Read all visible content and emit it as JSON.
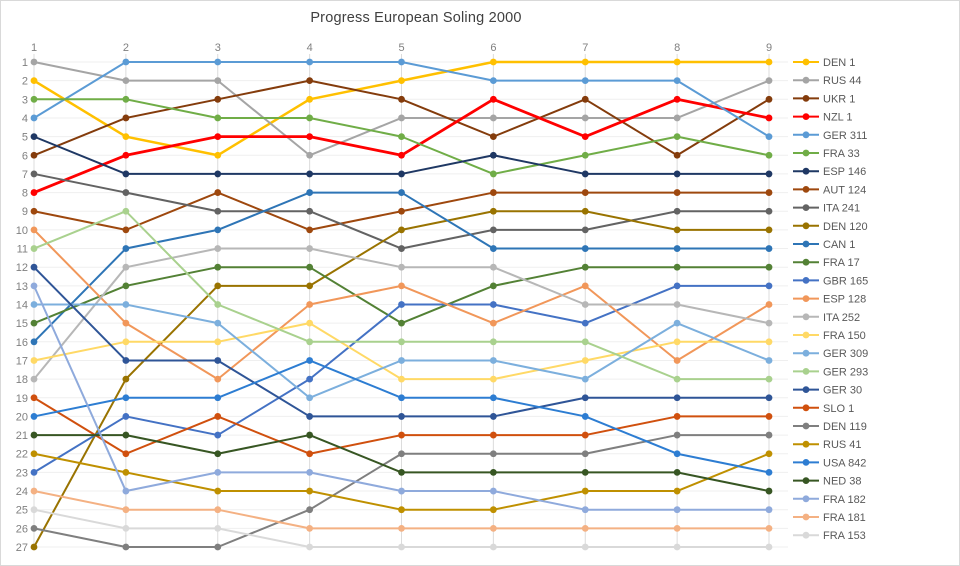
{
  "chart_data": {
    "type": "line",
    "title": "Progress European Soling 2000",
    "xlabel": "",
    "ylabel": "",
    "x_ticks": [
      1,
      2,
      3,
      4,
      5,
      6,
      7,
      8,
      9
    ],
    "y_ticks": [
      1,
      2,
      3,
      4,
      5,
      6,
      7,
      8,
      9,
      10,
      11,
      12,
      13,
      14,
      15,
      16,
      17,
      18,
      19,
      20,
      21,
      22,
      23,
      24,
      25,
      26,
      27
    ],
    "y_axis_inverted": true,
    "grid": true,
    "legend_position": "right",
    "axis_text_color": "#808080",
    "title_color": "#404040",
    "series": [
      {
        "name": "DEN 1",
        "color": "#FFC000",
        "ranks": [
          2,
          5,
          6,
          3,
          2,
          1,
          1,
          1,
          1
        ]
      },
      {
        "name": "RUS 44",
        "color": "#A5A5A5",
        "ranks": [
          1,
          2,
          2,
          6,
          4,
          4,
          4,
          4,
          2
        ]
      },
      {
        "name": "UKR 1",
        "color": "#843C0C",
        "ranks": [
          6,
          4,
          3,
          2,
          3,
          5,
          3,
          6,
          3
        ]
      },
      {
        "name": "NZL 1",
        "color": "#FF0000",
        "ranks": [
          8,
          6,
          5,
          5,
          6,
          3,
          5,
          3,
          4
        ]
      },
      {
        "name": "GER 311",
        "color": "#5B9BD5",
        "ranks": [
          4,
          1,
          1,
          1,
          1,
          2,
          2,
          2,
          5
        ]
      },
      {
        "name": "FRA 33",
        "color": "#70AD47",
        "ranks": [
          3,
          3,
          4,
          4,
          5,
          7,
          6,
          5,
          6
        ]
      },
      {
        "name": "ESP 146",
        "color": "#1F3864",
        "ranks": [
          5,
          7,
          7,
          7,
          7,
          6,
          7,
          7,
          7
        ]
      },
      {
        "name": "AUT 124",
        "color": "#9E480E",
        "ranks": [
          9,
          10,
          8,
          10,
          9,
          8,
          8,
          8,
          8
        ]
      },
      {
        "name": "ITA 241",
        "color": "#636363",
        "ranks": [
          7,
          8,
          9,
          9,
          11,
          10,
          10,
          9,
          9
        ]
      },
      {
        "name": "DEN 120",
        "color": "#997300",
        "ranks": [
          27,
          18,
          13,
          13,
          10,
          9,
          9,
          10,
          10
        ]
      },
      {
        "name": "CAN 1",
        "color": "#2E75B6",
        "ranks": [
          16,
          11,
          10,
          8,
          8,
          11,
          11,
          11,
          11
        ]
      },
      {
        "name": "FRA 17",
        "color": "#538135",
        "ranks": [
          15,
          13,
          12,
          12,
          15,
          13,
          12,
          12,
          12
        ]
      },
      {
        "name": "GBR 165",
        "color": "#4472C4",
        "ranks": [
          23,
          20,
          21,
          18,
          14,
          14,
          15,
          13,
          13
        ]
      },
      {
        "name": "ESP 128",
        "color": "#F1975A",
        "ranks": [
          10,
          15,
          18,
          14,
          13,
          15,
          13,
          17,
          14
        ]
      },
      {
        "name": "ITA 252",
        "color": "#B7B7B7",
        "ranks": [
          18,
          12,
          11,
          11,
          12,
          12,
          14,
          14,
          15
        ]
      },
      {
        "name": "FRA 150",
        "color": "#FFD966",
        "ranks": [
          17,
          16,
          16,
          15,
          18,
          18,
          17,
          16,
          16
        ]
      },
      {
        "name": "GER 309",
        "color": "#7CAFDD",
        "ranks": [
          14,
          14,
          15,
          19,
          17,
          17,
          18,
          15,
          17
        ]
      },
      {
        "name": "GER 293",
        "color": "#A9D18E",
        "ranks": [
          11,
          9,
          14,
          16,
          16,
          16,
          16,
          18,
          18
        ]
      },
      {
        "name": "GER 30",
        "color": "#2F5597",
        "ranks": [
          12,
          17,
          17,
          20,
          20,
          20,
          19,
          19,
          19
        ]
      },
      {
        "name": "SLO 1",
        "color": "#D0500E",
        "ranks": [
          19,
          22,
          20,
          22,
          21,
          21,
          21,
          20,
          20
        ]
      },
      {
        "name": "DEN 119",
        "color": "#7F7F7F",
        "ranks": [
          26,
          27,
          27,
          25,
          22,
          22,
          22,
          21,
          21
        ]
      },
      {
        "name": "RUS 41",
        "color": "#BF9000",
        "ranks": [
          22,
          23,
          24,
          24,
          25,
          25,
          24,
          24,
          22
        ]
      },
      {
        "name": "USA 842",
        "color": "#2D7DD2",
        "ranks": [
          20,
          19,
          19,
          17,
          19,
          19,
          20,
          22,
          23
        ]
      },
      {
        "name": "NED 38",
        "color": "#375623",
        "ranks": [
          21,
          21,
          22,
          21,
          23,
          23,
          23,
          23,
          24
        ]
      },
      {
        "name": "FRA 182",
        "color": "#8FAADC",
        "ranks": [
          13,
          24,
          23,
          23,
          24,
          24,
          25,
          25,
          25
        ]
      },
      {
        "name": "FRA 181",
        "color": "#F4B183",
        "ranks": [
          24,
          25,
          25,
          26,
          26,
          26,
          26,
          26,
          26
        ]
      },
      {
        "name": "FRA 153",
        "color": "#D9D9D9",
        "ranks": [
          25,
          26,
          26,
          27,
          27,
          27,
          27,
          27,
          27
        ]
      }
    ]
  }
}
